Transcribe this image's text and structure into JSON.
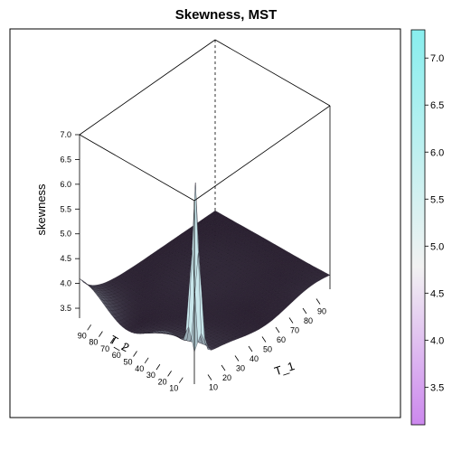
{
  "chart_data": {
    "type": "surface",
    "title": "Skewness, MST",
    "xlabel": "T_1",
    "ylabel": "T_2",
    "zlabel": "skewness",
    "x_ticks": [
      10,
      20,
      30,
      40,
      50,
      60,
      70,
      80,
      90
    ],
    "y_ticks": [
      10,
      20,
      30,
      40,
      50,
      60,
      70,
      80,
      90
    ],
    "z_ticks": [
      "3.5",
      "4.0",
      "4.5",
      "5.0",
      "5.5",
      "6.0",
      "6.5",
      "7.0"
    ],
    "zlim": [
      3.3,
      7.0
    ],
    "colorbar": {
      "ticks": [
        "3.5",
        "4.0",
        "4.5",
        "5.0",
        "5.5",
        "6.0",
        "6.5",
        "7.0"
      ],
      "range": [
        3.1,
        7.3
      ],
      "low_color": "#cc88ee",
      "mid_color": "#f2f2f2",
      "high_color": "#88eeee"
    },
    "surface": {
      "baseline": 3.55,
      "peak": {
        "x": 5,
        "y": 5,
        "value": 6.9
      },
      "ridge_value_at_low_t1": 4.05,
      "shade_color": "#2a1f30",
      "light_color": "#c9a6d8"
    }
  }
}
